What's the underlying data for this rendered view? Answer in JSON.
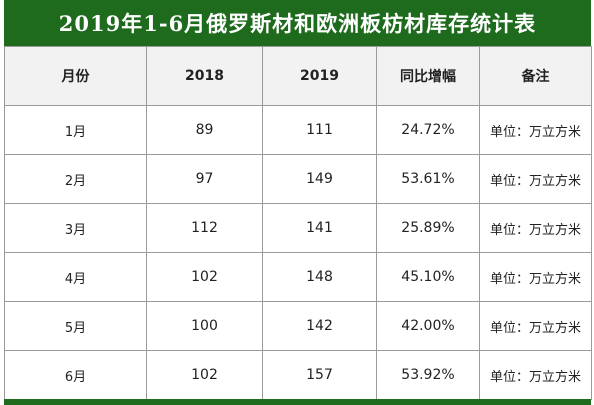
{
  "title": "2019年1-6月俄罗斯材和欧洲板枋材库存统计表",
  "columns": [
    "月份",
    "2018",
    "2019",
    "同比增幅",
    "备注"
  ],
  "rows": [
    {
      "month": "1月",
      "y2018": "89",
      "y2019": "111",
      "growth": "24.72%",
      "note": "单位：万立方米"
    },
    {
      "month": "2月",
      "y2018": "97",
      "y2019": "149",
      "growth": "53.61%",
      "note": "单位：万立方米"
    },
    {
      "month": "3月",
      "y2018": "112",
      "y2019": "141",
      "growth": "25.89%",
      "note": "单位：万立方米"
    },
    {
      "month": "4月",
      "y2018": "102",
      "y2019": "148",
      "growth": "45.10%",
      "note": "单位：万立方米"
    },
    {
      "month": "5月",
      "y2018": "100",
      "y2019": "142",
      "growth": "42.00%",
      "note": "单位：万立方米"
    },
    {
      "month": "6月",
      "y2018": "102",
      "y2019": "157",
      "growth": "53.92%",
      "note": "单位：万立方米"
    }
  ],
  "colors": {
    "header_bar": "#1e6b1e",
    "header_row": "#f2f2f2",
    "border": "#9a9a9a"
  }
}
